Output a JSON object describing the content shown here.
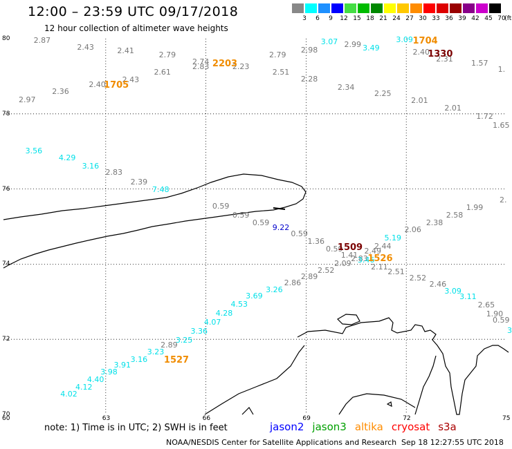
{
  "header": {
    "title": "12:00 – 23:59 UTC 09/17/2018",
    "subtitle": "12 hour collection of altimeter wave heights"
  },
  "colorbar": {
    "unit": "(ft)",
    "swatches": [
      {
        "label": "3",
        "color": "#888888"
      },
      {
        "label": "6",
        "color": "#00ffff"
      },
      {
        "label": "9",
        "color": "#1e90ff"
      },
      {
        "label": "12",
        "color": "#0000ff"
      },
      {
        "label": "15",
        "color": "#44dd44"
      },
      {
        "label": "18",
        "color": "#00bb00"
      },
      {
        "label": "21",
        "color": "#008800"
      },
      {
        "label": "24",
        "color": "#ffff00"
      },
      {
        "label": "27",
        "color": "#ffc800"
      },
      {
        "label": "30",
        "color": "#ff8c00"
      },
      {
        "label": "33",
        "color": "#ff0000"
      },
      {
        "label": "36",
        "color": "#dd0000"
      },
      {
        "label": "39",
        "color": "#990000"
      },
      {
        "label": "42",
        "color": "#880088"
      },
      {
        "label": "45",
        "color": "#cc00cc"
      },
      {
        "label": "70",
        "color": "#000000"
      }
    ]
  },
  "axes": {
    "lat_labels": [
      "80",
      "78",
      "76",
      "74",
      "72",
      "70"
    ],
    "lon_labels": [
      "60",
      "63",
      "66",
      "69",
      "72",
      "75"
    ]
  },
  "colors": {
    "gray": "#777777",
    "cyan": "#00e0e8",
    "blue": "#0000cc",
    "orange": "#f08c00",
    "darkred": "#7a0000"
  },
  "observations": [
    {
      "v": "2.87",
      "lon": 61.05,
      "lat": 79.95,
      "c": "gray"
    },
    {
      "v": "2.43",
      "lon": 62.35,
      "lat": 79.77,
      "c": "gray"
    },
    {
      "v": "2.41",
      "lon": 63.55,
      "lat": 79.67,
      "c": "gray"
    },
    {
      "v": "2.79",
      "lon": 64.8,
      "lat": 79.56,
      "c": "gray"
    },
    {
      "v": "2.74",
      "lon": 65.8,
      "lat": 79.37,
      "c": "gray"
    },
    {
      "v": "2.83",
      "lon": 65.8,
      "lat": 79.25,
      "c": "gray"
    },
    {
      "v": "2.23",
      "lon": 67.0,
      "lat": 79.25,
      "c": "gray"
    },
    {
      "v": "2.79",
      "lon": 68.1,
      "lat": 79.56,
      "c": "gray"
    },
    {
      "v": "2.98",
      "lon": 69.05,
      "lat": 79.68,
      "c": "gray"
    },
    {
      "v": "3.07",
      "lon": 69.65,
      "lat": 79.9,
      "c": "cyan"
    },
    {
      "v": "2.99",
      "lon": 70.35,
      "lat": 79.83,
      "c": "gray"
    },
    {
      "v": "3.49",
      "lon": 70.9,
      "lat": 79.75,
      "c": "cyan"
    },
    {
      "v": "3.09",
      "lon": 71.9,
      "lat": 79.97,
      "c": "cyan"
    },
    {
      "v": "2.40",
      "lon": 72.4,
      "lat": 79.63,
      "c": "gray"
    },
    {
      "v": "2.31",
      "lon": 73.1,
      "lat": 79.45,
      "c": "gray"
    },
    {
      "v": "1.57",
      "lon": 74.15,
      "lat": 79.33,
      "c": "gray"
    },
    {
      "v": "1.",
      "lon": 74.95,
      "lat": 79.18,
      "c": "gray"
    },
    {
      "v": "2.61",
      "lon": 64.65,
      "lat": 79.1,
      "c": "gray"
    },
    {
      "v": "2.43",
      "lon": 63.7,
      "lat": 78.9,
      "c": "gray"
    },
    {
      "v": "2.40",
      "lon": 62.7,
      "lat": 78.77,
      "c": "gray"
    },
    {
      "v": "2.36",
      "lon": 61.6,
      "lat": 78.58,
      "c": "gray"
    },
    {
      "v": "2.97",
      "lon": 60.6,
      "lat": 78.37,
      "c": "gray"
    },
    {
      "v": "2.51",
      "lon": 68.2,
      "lat": 79.1,
      "c": "gray"
    },
    {
      "v": "2.28",
      "lon": 69.05,
      "lat": 78.92,
      "c": "gray"
    },
    {
      "v": "2.34",
      "lon": 70.15,
      "lat": 78.7,
      "c": "gray"
    },
    {
      "v": "2.25",
      "lon": 71.25,
      "lat": 78.53,
      "c": "gray"
    },
    {
      "v": "2.01",
      "lon": 72.35,
      "lat": 78.35,
      "c": "gray"
    },
    {
      "v": "2.01",
      "lon": 73.35,
      "lat": 78.15,
      "c": "gray"
    },
    {
      "v": "1.72",
      "lon": 74.3,
      "lat": 77.92,
      "c": "gray"
    },
    {
      "v": "1.65",
      "lon": 75.05,
      "lat": 77.68,
      "c": "gray"
    },
    {
      "v": "3.56",
      "lon": 60.8,
      "lat": 77.0,
      "c": "cyan"
    },
    {
      "v": "4.29",
      "lon": 61.8,
      "lat": 76.82,
      "c": "cyan"
    },
    {
      "v": "3.16",
      "lon": 62.5,
      "lat": 76.6,
      "c": "cyan"
    },
    {
      "v": "2.83",
      "lon": 63.2,
      "lat": 76.43,
      "c": "gray"
    },
    {
      "v": "2.39",
      "lon": 63.95,
      "lat": 76.18,
      "c": "gray"
    },
    {
      "v": "7.48",
      "lon": 64.6,
      "lat": 75.98,
      "c": "cyan"
    },
    {
      "v": "2.",
      "lon": 75.0,
      "lat": 75.7,
      "c": "gray"
    },
    {
      "v": "1.99",
      "lon": 74.0,
      "lat": 75.5,
      "c": "gray"
    },
    {
      "v": "2.58",
      "lon": 73.4,
      "lat": 75.3,
      "c": "gray"
    },
    {
      "v": "2.38",
      "lon": 72.8,
      "lat": 75.1,
      "c": "gray"
    },
    {
      "v": "2.06",
      "lon": 72.15,
      "lat": 74.9,
      "c": "gray"
    },
    {
      "v": "5.19",
      "lon": 71.55,
      "lat": 74.68,
      "c": "cyan"
    },
    {
      "v": "2.44",
      "lon": 71.25,
      "lat": 74.47,
      "c": "gray"
    },
    {
      "v": "0.59",
      "lon": 66.4,
      "lat": 75.53,
      "c": "gray"
    },
    {
      "v": "0.59",
      "lon": 67.0,
      "lat": 75.3,
      "c": "gray"
    },
    {
      "v": "0.59",
      "lon": 67.6,
      "lat": 75.1,
      "c": "gray"
    },
    {
      "v": "9.22",
      "lon": 68.2,
      "lat": 74.97,
      "c": "blue"
    },
    {
      "v": "0.59",
      "lon": 68.75,
      "lat": 74.8,
      "c": "gray"
    },
    {
      "v": "1.36",
      "lon": 69.25,
      "lat": 74.6,
      "c": "gray"
    },
    {
      "v": "0.59",
      "lon": 69.8,
      "lat": 74.4,
      "c": "gray"
    },
    {
      "v": "1.41",
      "lon": 70.25,
      "lat": 74.23,
      "c": "gray"
    },
    {
      "v": "2.49",
      "lon": 70.95,
      "lat": 74.33,
      "c": "gray"
    },
    {
      "v": "2.83",
      "lon": 70.55,
      "lat": 74.13,
      "c": "gray"
    },
    {
      "v": "3.46",
      "lon": 70.75,
      "lat": 74.1,
      "c": "cyan"
    },
    {
      "v": "2.09",
      "lon": 70.05,
      "lat": 74.0,
      "c": "gray"
    },
    {
      "v": "2.11",
      "lon": 71.15,
      "lat": 73.92,
      "c": "gray"
    },
    {
      "v": "2.52",
      "lon": 69.55,
      "lat": 73.83,
      "c": "gray"
    },
    {
      "v": "2.51",
      "lon": 71.65,
      "lat": 73.78,
      "c": "gray"
    },
    {
      "v": "2.89",
      "lon": 69.05,
      "lat": 73.65,
      "c": "gray"
    },
    {
      "v": "2.52",
      "lon": 72.3,
      "lat": 73.63,
      "c": "gray"
    },
    {
      "v": "2.86",
      "lon": 68.55,
      "lat": 73.5,
      "c": "gray"
    },
    {
      "v": "2.46",
      "lon": 72.9,
      "lat": 73.45,
      "c": "gray"
    },
    {
      "v": "3.26",
      "lon": 68.0,
      "lat": 73.3,
      "c": "cyan"
    },
    {
      "v": "3.09",
      "lon": 73.35,
      "lat": 73.28,
      "c": "cyan"
    },
    {
      "v": "3.11",
      "lon": 73.8,
      "lat": 73.13,
      "c": "cyan"
    },
    {
      "v": "3.69",
      "lon": 67.4,
      "lat": 73.15,
      "c": "cyan"
    },
    {
      "v": "4.53",
      "lon": 66.95,
      "lat": 72.93,
      "c": "cyan"
    },
    {
      "v": "2.65",
      "lon": 74.35,
      "lat": 72.9,
      "c": "gray"
    },
    {
      "v": "4.28",
      "lon": 66.5,
      "lat": 72.68,
      "c": "cyan"
    },
    {
      "v": "1.90",
      "lon": 74.6,
      "lat": 72.67,
      "c": "gray"
    },
    {
      "v": "0.59",
      "lon": 75.1,
      "lat": 72.5,
      "c": "gray"
    },
    {
      "v": "4.07",
      "lon": 66.15,
      "lat": 72.45,
      "c": "cyan"
    },
    {
      "v": "3",
      "lon": 75.25,
      "lat": 72.23,
      "c": "cyan"
    },
    {
      "v": "3.36",
      "lon": 65.75,
      "lat": 72.2,
      "c": "cyan"
    },
    {
      "v": "3.25",
      "lon": 65.3,
      "lat": 71.97,
      "c": "cyan"
    },
    {
      "v": "2.89",
      "lon": 64.85,
      "lat": 71.83,
      "c": "gray"
    },
    {
      "v": "3.23",
      "lon": 64.45,
      "lat": 71.65,
      "c": "cyan"
    },
    {
      "v": "3.16",
      "lon": 63.95,
      "lat": 71.45,
      "c": "cyan"
    },
    {
      "v": "3.91",
      "lon": 63.45,
      "lat": 71.3,
      "c": "cyan"
    },
    {
      "v": "3.98",
      "lon": 63.05,
      "lat": 71.12,
      "c": "cyan"
    },
    {
      "v": "4.40",
      "lon": 62.65,
      "lat": 70.92,
      "c": "cyan"
    },
    {
      "v": "4.12",
      "lon": 62.3,
      "lat": 70.72,
      "c": "cyan"
    },
    {
      "v": "4.02",
      "lon": 61.85,
      "lat": 70.53,
      "c": "cyan"
    }
  ],
  "pass_times": [
    {
      "v": "1704",
      "lon": 72.4,
      "lat": 79.95,
      "c": "orange"
    },
    {
      "v": "1330",
      "lon": 72.85,
      "lat": 79.6,
      "c": "darkred"
    },
    {
      "v": "2203",
      "lon": 66.4,
      "lat": 79.33,
      "c": "orange"
    },
    {
      "v": "1705",
      "lon": 63.15,
      "lat": 78.77,
      "c": "orange"
    },
    {
      "v": "1509",
      "lon": 70.15,
      "lat": 74.45,
      "c": "darkred"
    },
    {
      "v": "1526",
      "lon": 71.05,
      "lat": 74.15,
      "c": "orange"
    },
    {
      "v": "1527",
      "lon": 64.95,
      "lat": 71.45,
      "c": "orange"
    }
  ],
  "footer": {
    "note": "note: 1) Time is in UTC; 2) SWH is in feet",
    "satellites": [
      {
        "name": "jason2",
        "color": "#0000ff"
      },
      {
        "name": "jason3",
        "color": "#00a000"
      },
      {
        "name": "altika",
        "color": "#ff8c00"
      },
      {
        "name": "cryosat",
        "color": "#ff0000"
      },
      {
        "name": "s3a",
        "color": "#aa0000"
      }
    ],
    "credit": "NOAA/NESDIS Center for Satellite Applications and Research",
    "timestamp": "Sep 18 12:27:55 UTC 2018"
  }
}
